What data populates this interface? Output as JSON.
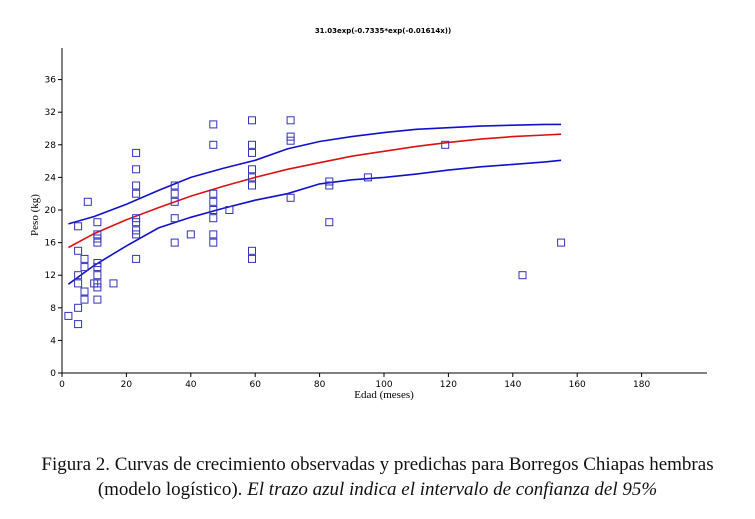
{
  "chart_data": {
    "type": "scatter",
    "title": "31.03exp(-0.7335*exp(-0.01614x))",
    "xlabel": "Edad (meses)",
    "ylabel": "Peso (kg)",
    "xlim": [
      0,
      200
    ],
    "ylim": [
      0,
      40
    ],
    "xticks": [
      0,
      20,
      40,
      60,
      80,
      100,
      120,
      140,
      160,
      180
    ],
    "yticks": [
      0,
      4,
      8,
      12,
      16,
      20,
      24,
      28,
      32,
      36
    ],
    "grid": false,
    "legend": "none",
    "colors": {
      "points": "#3333bb",
      "fit": "#dd1111",
      "ci": "#1111cc",
      "axis": "#000000"
    },
    "points": [
      [
        2,
        7
      ],
      [
        5,
        6
      ],
      [
        5,
        8
      ],
      [
        5,
        11
      ],
      [
        5,
        12
      ],
      [
        5,
        15
      ],
      [
        5,
        18
      ],
      [
        7,
        9
      ],
      [
        7,
        10
      ],
      [
        7,
        13
      ],
      [
        7,
        14
      ],
      [
        8,
        21
      ],
      [
        10,
        11
      ],
      [
        11,
        9
      ],
      [
        11,
        10.5
      ],
      [
        11,
        11
      ],
      [
        11,
        12
      ],
      [
        11,
        13
      ],
      [
        11,
        13.5
      ],
      [
        11,
        16
      ],
      [
        11,
        16.5
      ],
      [
        11,
        17
      ],
      [
        11,
        18.5
      ],
      [
        16,
        11
      ],
      [
        23,
        14
      ],
      [
        23,
        17
      ],
      [
        23,
        17.5
      ],
      [
        23,
        18.5
      ],
      [
        23,
        19
      ],
      [
        23,
        22
      ],
      [
        23,
        23
      ],
      [
        23,
        25
      ],
      [
        23,
        27
      ],
      [
        35,
        16
      ],
      [
        35,
        19
      ],
      [
        35,
        21
      ],
      [
        35,
        22
      ],
      [
        35,
        23
      ],
      [
        40,
        17
      ],
      [
        47,
        16
      ],
      [
        47,
        17
      ],
      [
        47,
        19
      ],
      [
        47,
        20
      ],
      [
        47,
        21
      ],
      [
        47,
        22
      ],
      [
        47,
        28
      ],
      [
        47,
        30.5
      ],
      [
        52,
        20
      ],
      [
        59,
        14
      ],
      [
        59,
        15
      ],
      [
        59,
        23
      ],
      [
        59,
        24
      ],
      [
        59,
        25
      ],
      [
        59,
        27
      ],
      [
        59,
        28
      ],
      [
        59,
        31
      ],
      [
        71,
        21.5
      ],
      [
        71,
        28.5
      ],
      [
        71,
        29
      ],
      [
        71,
        31
      ],
      [
        83,
        18.5
      ],
      [
        83,
        23
      ],
      [
        83,
        23.5
      ],
      [
        95,
        24
      ],
      [
        119,
        28
      ],
      [
        143,
        12
      ],
      [
        155,
        16
      ]
    ],
    "series": [
      {
        "x": [
          2,
          10,
          20,
          30,
          40,
          50,
          60,
          70,
          80,
          90,
          100,
          110,
          120,
          130,
          140,
          150,
          155
        ],
        "y": [
          15.4,
          17.1,
          18.8,
          20.3,
          21.7,
          22.9,
          24.0,
          25.0,
          25.8,
          26.6,
          27.2,
          27.8,
          28.3,
          28.7,
          29.0,
          29.2,
          29.3
        ]
      },
      {
        "x": [
          2,
          10,
          20,
          30,
          40,
          50,
          60,
          70,
          80,
          90,
          100,
          110,
          120,
          130,
          140,
          150,
          155
        ],
        "y": [
          18.3,
          19.2,
          20.7,
          22.4,
          24.0,
          25.1,
          26.1,
          27.5,
          28.4,
          29.0,
          29.5,
          29.9,
          30.1,
          30.3,
          30.4,
          30.5,
          30.5
        ]
      },
      {
        "x": [
          2,
          10,
          20,
          30,
          40,
          50,
          60,
          70,
          80,
          90,
          100,
          110,
          120,
          130,
          140,
          150,
          155
        ],
        "y": [
          10.9,
          13.2,
          15.6,
          17.8,
          19.1,
          20.2,
          21.2,
          22.0,
          23.2,
          23.7,
          24.0,
          24.4,
          24.9,
          25.3,
          25.6,
          25.9,
          26.1
        ]
      }
    ]
  },
  "caption": {
    "line1": "Figura 2. Curvas de crecimiento observadas y predichas para Borregos Chiapas hembras",
    "line2_normal": "(modelo logístico). ",
    "line2_italic": "El trazo azul indica el intervalo de confianza del 95%"
  }
}
